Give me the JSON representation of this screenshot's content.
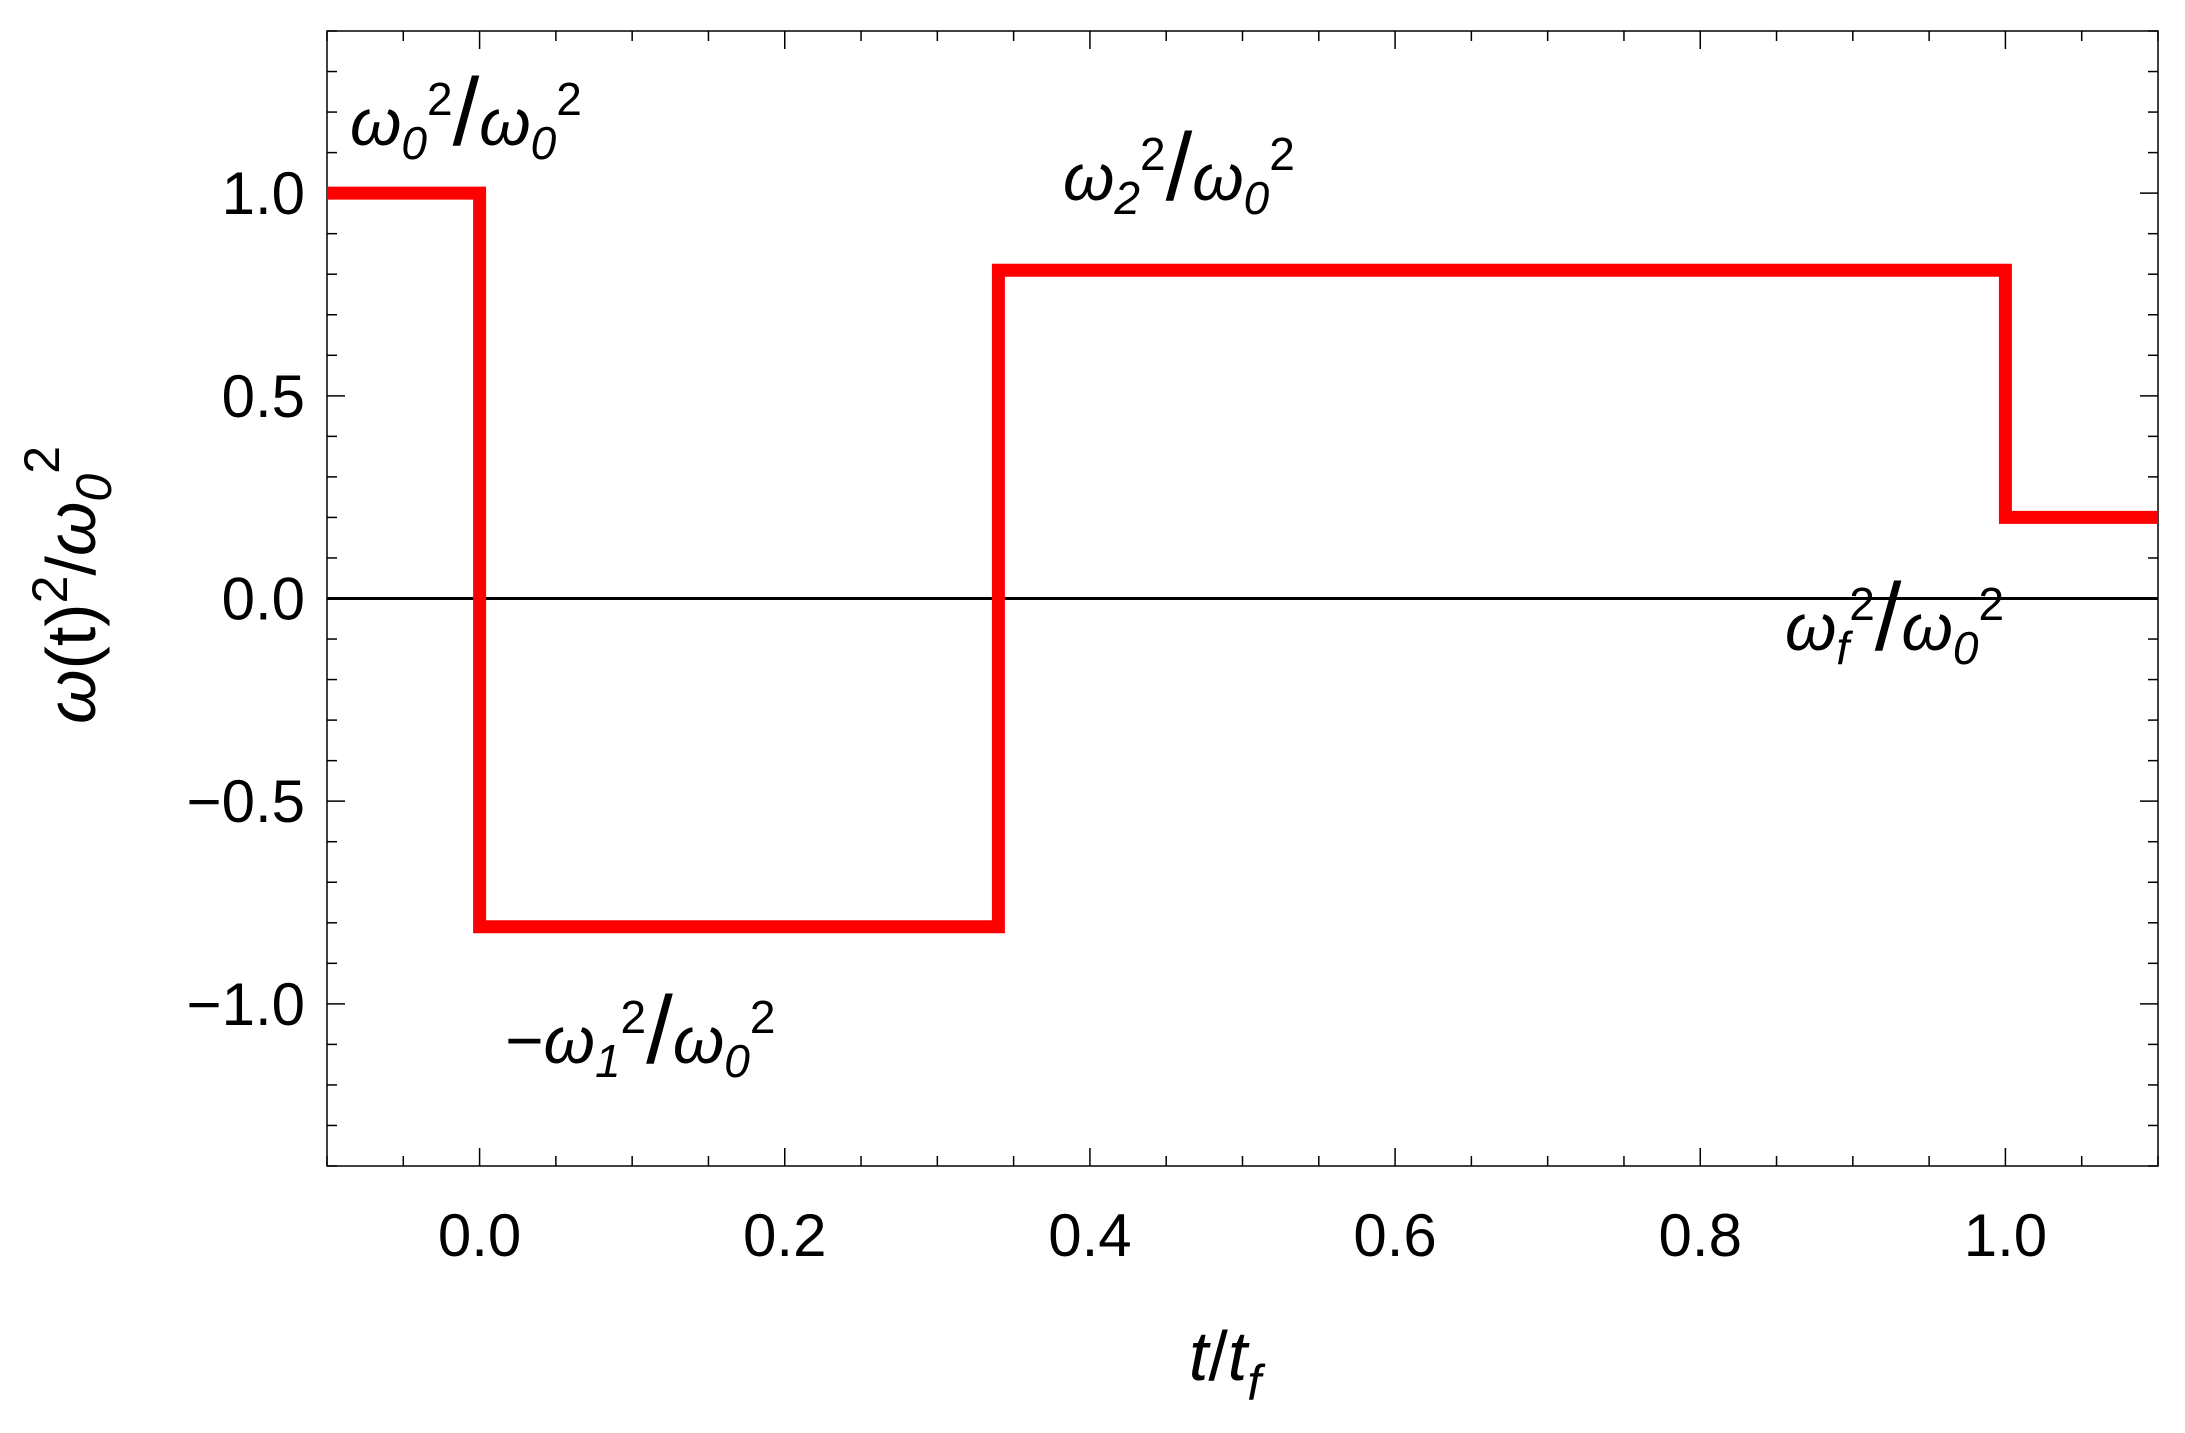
{
  "chart_data": {
    "type": "line",
    "title": "",
    "xlabel": "t/t_f",
    "ylabel": "ω(t)^2/ω_0^2",
    "xlim": [
      -0.1,
      1.1
    ],
    "ylim": [
      -1.4,
      1.4
    ],
    "x_ticks": [
      0.0,
      0.2,
      0.4,
      0.6,
      0.8,
      1.0
    ],
    "x_tick_labels": [
      "0.0",
      "0.2",
      "0.4",
      "0.6",
      "0.8",
      "1.0"
    ],
    "y_ticks": [
      -1.0,
      -0.5,
      0.0,
      0.5,
      1.0
    ],
    "y_tick_labels": [
      "−1.0",
      "−0.5",
      "0.0",
      "0.5",
      "1.0"
    ],
    "grid": false,
    "series": [
      {
        "color": "#ff0000",
        "step": true,
        "x": [
          -0.1,
          0.0,
          0.0,
          0.34,
          0.34,
          1.0,
          1.0,
          1.1
        ],
        "y": [
          1.0,
          1.0,
          -0.81,
          -0.81,
          0.81,
          0.81,
          0.2,
          0.2
        ]
      }
    ],
    "zero_line_color": "#000000",
    "annotations": [
      {
        "id": "a0",
        "prefix": "",
        "w": "ω",
        "sub": "0",
        "sup": "2",
        "den_w": "ω",
        "den_sub": "0",
        "den_sup": "2"
      },
      {
        "id": "a1",
        "prefix": "−",
        "w": "ω",
        "sub": "1",
        "sup": "2",
        "den_w": "ω",
        "den_sub": "0",
        "den_sup": "2"
      },
      {
        "id": "a2",
        "prefix": "",
        "w": "ω",
        "sub": "2",
        "sup": "2",
        "den_w": "ω",
        "den_sub": "0",
        "den_sup": "2"
      },
      {
        "id": "af",
        "prefix": "",
        "w": "ω",
        "sub": "f",
        "sup": "2",
        "den_w": "ω",
        "den_sub": "0",
        "den_sup": "2"
      }
    ]
  },
  "axes": {
    "xlabel_parts": {
      "num": "t",
      "slash": "/",
      "den": "t",
      "den_sub": "f"
    },
    "ylabel_parts": {
      "w": "ω",
      "paren": "(t)",
      "sup": "2",
      "slash": "/",
      "den_w": "ω",
      "den_sub": "0",
      "den_sup": "2"
    }
  }
}
